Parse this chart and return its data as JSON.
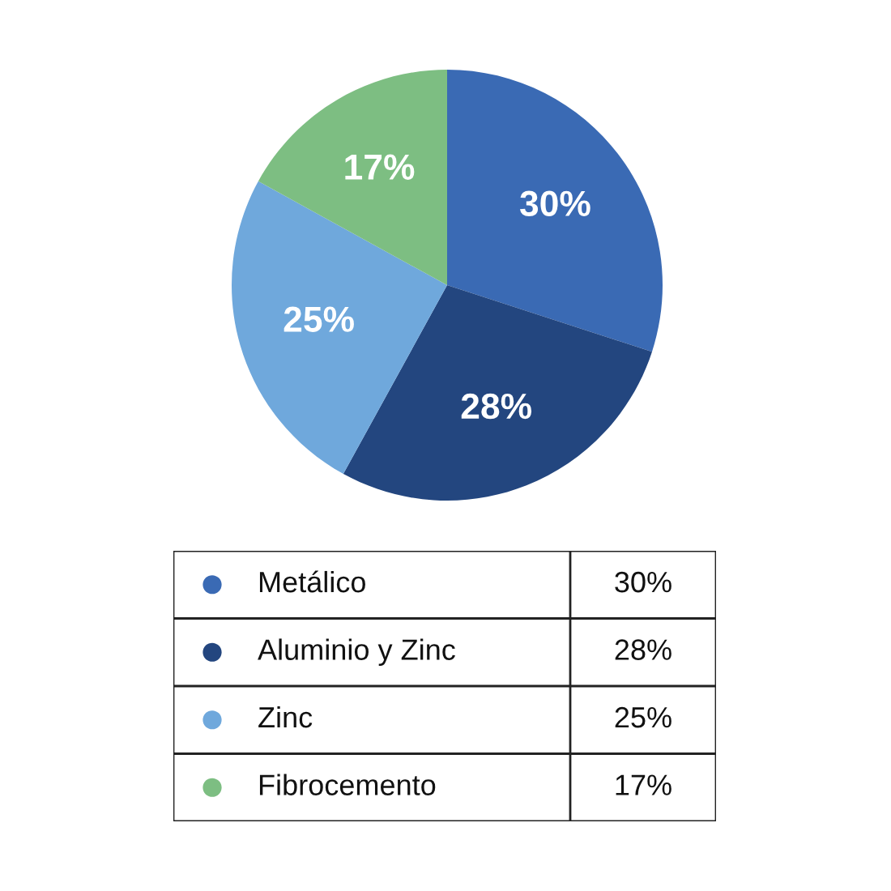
{
  "chart_data": {
    "type": "pie",
    "categories": [
      "Metálico",
      "Aluminio y Zinc",
      "Zinc",
      "Fibrocemento"
    ],
    "values": [
      30,
      28,
      25,
      17
    ],
    "value_labels": [
      "30%",
      "28%",
      "25%",
      "17%"
    ],
    "colors": [
      "#3a6ab4",
      "#23467f",
      "#6fa8dc",
      "#7dbe82"
    ],
    "legend": "bottom"
  }
}
